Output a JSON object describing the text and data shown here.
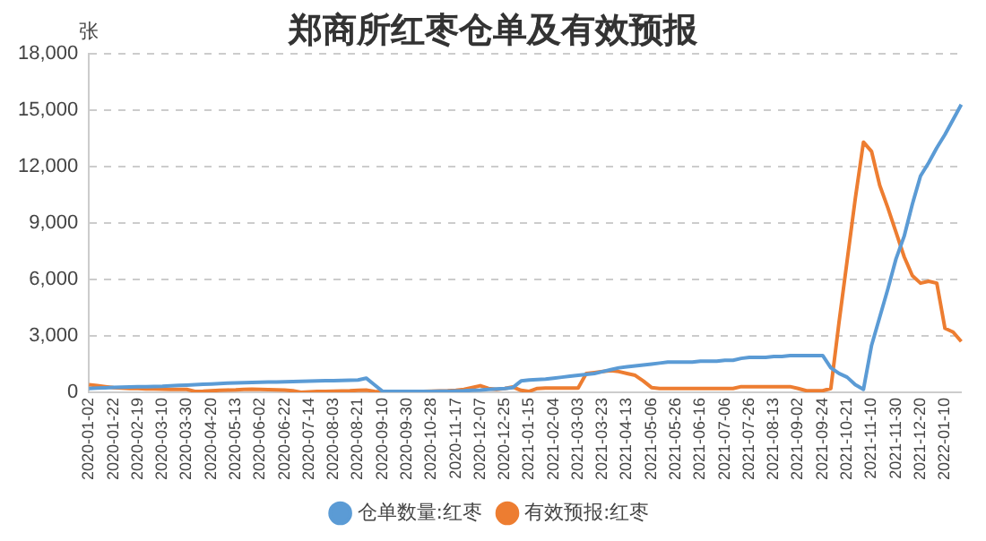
{
  "chart_data": {
    "type": "line",
    "title": "郑商所红枣仓单及有效预报",
    "ylabel": "张",
    "categories": [
      "2020-01-02",
      null,
      null,
      "2020-01-22",
      null,
      null,
      "2020-02-19",
      null,
      null,
      "2020-03-10",
      null,
      null,
      "2020-03-30",
      null,
      null,
      "2020-04-20",
      null,
      null,
      "2020-05-13",
      null,
      null,
      "2020-06-02",
      null,
      null,
      "2020-06-22",
      null,
      null,
      "2020-07-14",
      null,
      null,
      "2020-08-03",
      null,
      null,
      "2020-08-21",
      null,
      null,
      "2020-09-10",
      null,
      null,
      "2020-09-30",
      null,
      null,
      "2020-10-28",
      null,
      null,
      "2020-11-17",
      null,
      null,
      "2020-12-07",
      null,
      null,
      "2020-12-25",
      null,
      null,
      "2021-01-15",
      null,
      null,
      "2021-02-04",
      null,
      null,
      "2021-03-03",
      null,
      null,
      "2021-03-23",
      null,
      null,
      "2021-04-13",
      null,
      null,
      "2021-05-06",
      null,
      null,
      "2021-05-26",
      null,
      null,
      "2021-06-16",
      null,
      null,
      "2021-07-06",
      null,
      null,
      "2021-07-26",
      null,
      null,
      "2021-08-13",
      null,
      null,
      "2021-09-02",
      null,
      null,
      "2021-09-24",
      null,
      null,
      "2021-10-21",
      null,
      null,
      "2021-11-10",
      null,
      null,
      "2021-11-30",
      null,
      null,
      "2021-12-20",
      null,
      null,
      "2022-01-10",
      null,
      null
    ],
    "series": [
      {
        "name": "仓单数量:红枣",
        "color": "#5b9bd5",
        "values": [
          200,
          220,
          240,
          260,
          270,
          280,
          290,
          300,
          310,
          320,
          340,
          360,
          380,
          400,
          420,
          440,
          460,
          480,
          500,
          510,
          520,
          530,
          540,
          550,
          560,
          570,
          580,
          590,
          600,
          610,
          620,
          630,
          640,
          650,
          750,
          400,
          50,
          40,
          40,
          40,
          40,
          50,
          50,
          60,
          60,
          70,
          80,
          100,
          120,
          150,
          180,
          200,
          250,
          600,
          650,
          680,
          700,
          750,
          800,
          850,
          900,
          950,
          1000,
          1100,
          1200,
          1300,
          1350,
          1400,
          1450,
          1500,
          1550,
          1600,
          1600,
          1600,
          1600,
          1650,
          1650,
          1650,
          1700,
          1700,
          1800,
          1850,
          1850,
          1850,
          1900,
          1900,
          1950,
          1950,
          1950,
          1950,
          1950,
          1300,
          1000,
          800,
          400,
          150,
          2500,
          4000,
          5500,
          7100,
          8300,
          10000,
          11500,
          12200,
          13000,
          13700,
          14500,
          15300
        ]
      },
      {
        "name": "有效预报:红枣",
        "color": "#ed7d31",
        "values": [
          400,
          350,
          300,
          250,
          220,
          200,
          200,
          180,
          170,
          160,
          150,
          150,
          150,
          50,
          60,
          80,
          100,
          120,
          130,
          150,
          160,
          150,
          140,
          130,
          120,
          80,
          0,
          20,
          40,
          50,
          60,
          70,
          80,
          100,
          120,
          50,
          20,
          20,
          30,
          40,
          50,
          50,
          60,
          70,
          80,
          100,
          150,
          250,
          350,
          200,
          150,
          200,
          280,
          100,
          50,
          200,
          220,
          220,
          220,
          220,
          220,
          1000,
          1050,
          1100,
          1150,
          1100,
          1000,
          900,
          600,
          250,
          200,
          200,
          200,
          200,
          200,
          200,
          200,
          200,
          200,
          200,
          300,
          300,
          300,
          300,
          300,
          300,
          300,
          200,
          80,
          80,
          80,
          200,
          3700,
          7000,
          10300,
          13300,
          12800,
          11000,
          9800,
          8500,
          7200,
          6200,
          5800,
          5900,
          5800,
          3400,
          3200,
          2700
        ]
      }
    ],
    "ylim": [
      0,
      18000
    ],
    "yticks": [
      {
        "value": 0,
        "label": "0"
      },
      {
        "value": 3000,
        "label": "3,000"
      },
      {
        "value": 6000,
        "label": "6,000"
      },
      {
        "value": 9000,
        "label": "9,000"
      },
      {
        "value": 12000,
        "label": "12,000"
      },
      {
        "value": 15000,
        "label": "15,000"
      },
      {
        "value": 18000,
        "label": "18,000"
      }
    ],
    "grid": "y",
    "legend": "bottom",
    "marker": "none",
    "line_style": "solid"
  }
}
